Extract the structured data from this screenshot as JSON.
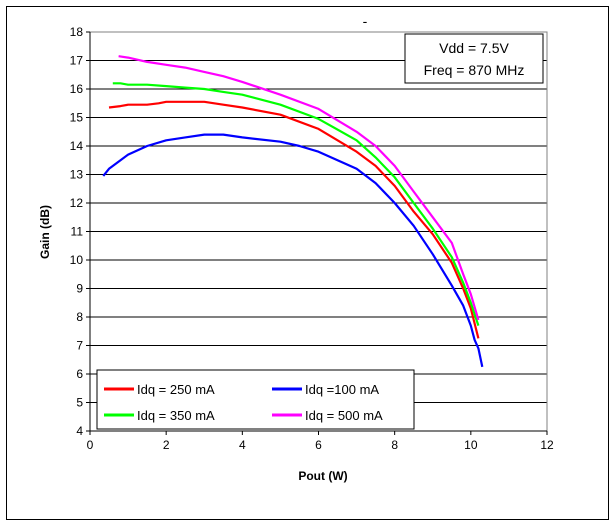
{
  "chart_data": {
    "type": "line",
    "title": "-",
    "xlabel": "Pout (W)",
    "ylabel": "Gain (dB)",
    "xlim": [
      0,
      12
    ],
    "ylim": [
      4,
      18
    ],
    "xticks": [
      0,
      2,
      4,
      6,
      8,
      10,
      12
    ],
    "yticks": [
      4,
      5,
      6,
      7,
      8,
      9,
      10,
      11,
      12,
      13,
      14,
      15,
      16,
      17,
      18
    ],
    "grid": "horizontal",
    "annotation": {
      "lines": [
        "Vdd = 7.5V",
        "Freq = 870 MHz"
      ],
      "placement": "top-right"
    },
    "legend_placement": "bottom-left",
    "series": [
      {
        "name": "Idq = 250 mA",
        "color": "#ff0000",
        "points": [
          [
            0.5,
            15.35
          ],
          [
            0.8,
            15.4
          ],
          [
            1.0,
            15.45
          ],
          [
            1.5,
            15.45
          ],
          [
            1.8,
            15.5
          ],
          [
            2.0,
            15.55
          ],
          [
            3.0,
            15.55
          ],
          [
            3.5,
            15.45
          ],
          [
            4.0,
            15.35
          ],
          [
            5.0,
            15.1
          ],
          [
            6.0,
            14.6
          ],
          [
            7.0,
            13.8
          ],
          [
            7.5,
            13.3
          ],
          [
            8.0,
            12.6
          ],
          [
            8.5,
            11.7
          ],
          [
            9.0,
            10.9
          ],
          [
            9.5,
            9.9
          ],
          [
            9.8,
            9.0
          ],
          [
            10.0,
            8.3
          ],
          [
            10.2,
            7.25
          ]
        ]
      },
      {
        "name": "Idq =100 mA",
        "color": "#0000ff",
        "points": [
          [
            0.35,
            12.95
          ],
          [
            0.5,
            13.2
          ],
          [
            0.8,
            13.5
          ],
          [
            1.0,
            13.7
          ],
          [
            1.5,
            14.0
          ],
          [
            2.0,
            14.2
          ],
          [
            2.5,
            14.3
          ],
          [
            3.0,
            14.4
          ],
          [
            3.5,
            14.4
          ],
          [
            4.0,
            14.3
          ],
          [
            5.0,
            14.15
          ],
          [
            5.5,
            14.0
          ],
          [
            6.0,
            13.8
          ],
          [
            7.0,
            13.2
          ],
          [
            7.5,
            12.7
          ],
          [
            8.0,
            12.0
          ],
          [
            8.5,
            11.2
          ],
          [
            9.0,
            10.2
          ],
          [
            9.5,
            9.1
          ],
          [
            9.8,
            8.4
          ],
          [
            10.0,
            7.7
          ],
          [
            10.1,
            7.2
          ],
          [
            10.2,
            6.9
          ],
          [
            10.3,
            6.25
          ]
        ]
      },
      {
        "name": "Idq = 350 mA",
        "color": "#00ff00",
        "points": [
          [
            0.6,
            16.2
          ],
          [
            0.8,
            16.2
          ],
          [
            1.0,
            16.15
          ],
          [
            1.5,
            16.15
          ],
          [
            2.0,
            16.1
          ],
          [
            2.5,
            16.05
          ],
          [
            3.0,
            16.0
          ],
          [
            3.5,
            15.9
          ],
          [
            4.0,
            15.8
          ],
          [
            5.0,
            15.45
          ],
          [
            6.0,
            14.95
          ],
          [
            7.0,
            14.2
          ],
          [
            7.5,
            13.6
          ],
          [
            8.0,
            12.9
          ],
          [
            8.5,
            12.0
          ],
          [
            9.0,
            11.1
          ],
          [
            9.5,
            10.1
          ],
          [
            9.8,
            9.2
          ],
          [
            10.0,
            8.5
          ],
          [
            10.2,
            7.7
          ]
        ]
      },
      {
        "name": "Idq = 500 mA",
        "color": "#ff00ff",
        "points": [
          [
            0.75,
            17.15
          ],
          [
            1.0,
            17.1
          ],
          [
            1.5,
            16.95
          ],
          [
            2.0,
            16.85
          ],
          [
            2.5,
            16.75
          ],
          [
            3.0,
            16.6
          ],
          [
            3.5,
            16.45
          ],
          [
            4.0,
            16.25
          ],
          [
            5.0,
            15.8
          ],
          [
            6.0,
            15.3
          ],
          [
            7.0,
            14.5
          ],
          [
            7.5,
            14.0
          ],
          [
            8.0,
            13.3
          ],
          [
            8.5,
            12.4
          ],
          [
            9.0,
            11.5
          ],
          [
            9.5,
            10.6
          ],
          [
            9.8,
            9.5
          ],
          [
            10.0,
            8.8
          ],
          [
            10.2,
            7.9
          ]
        ]
      }
    ]
  }
}
